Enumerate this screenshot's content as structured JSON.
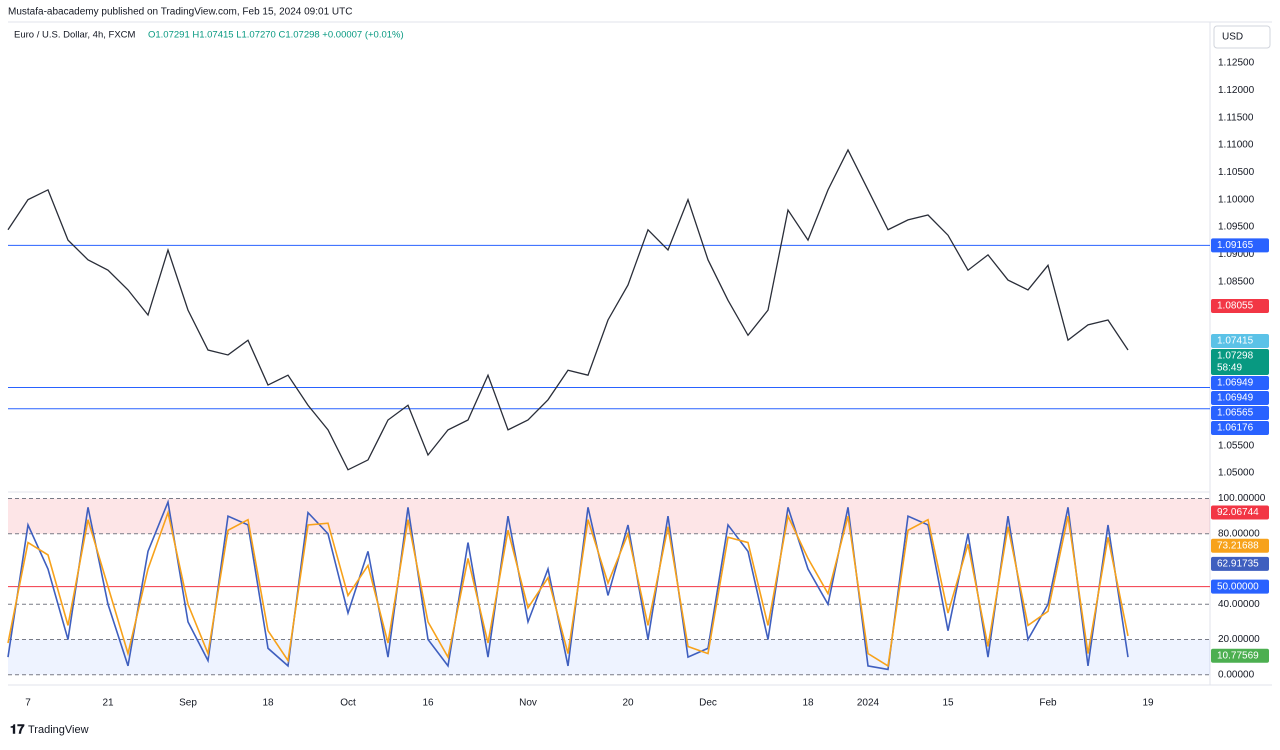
{
  "header": {
    "published": "Mustafa-abacademy published on TradingView.com, Feb 15, 2024 09:01 UTC",
    "symbol": "Euro / U.S. Dollar, 4h, FXCM",
    "ohlc": "O1.07291 H1.07415 L1.07270 C1.07298 +0.00007 (+0.01%)",
    "currency": "USD"
  },
  "footer": {
    "brand": "TradingView"
  },
  "chart_data": [
    {
      "type": "line",
      "categories": [
        null,
        "7",
        null,
        null,
        null,
        "21",
        null,
        null,
        null,
        "Sep",
        null,
        null,
        null,
        "18",
        null,
        null,
        null,
        "Oct",
        null,
        null,
        null,
        "16",
        null,
        null,
        null,
        null,
        "Nov",
        null,
        null,
        null,
        null,
        "20",
        null,
        null,
        null,
        "Dec",
        null,
        null,
        null,
        null,
        "18",
        null,
        null,
        "2024",
        null,
        null,
        null,
        "15",
        null,
        null,
        null,
        null,
        "Feb",
        null,
        null,
        null,
        null,
        "19"
      ],
      "series": [
        {
          "name": "EUR/USD",
          "color": "#2a2e39",
          "values": [
            1.0945,
            1.1,
            1.1018,
            1.0926,
            1.089,
            1.0871,
            1.0835,
            1.0789,
            1.0908,
            1.0798,
            1.0725,
            1.0716,
            1.0743,
            1.0661,
            1.0679,
            1.0624,
            1.0579,
            1.0506,
            1.0524,
            1.0597,
            1.0624,
            1.0533,
            1.0579,
            1.0597,
            1.0679,
            1.0579,
            1.0597,
            1.0634,
            1.0688,
            1.0679,
            1.078,
            1.0844,
            1.0945,
            1.0908,
            1.1,
            1.089,
            1.0816,
            1.0752,
            1.0798,
            1.0981,
            1.0926,
            1.1018,
            1.1091,
            1.1018,
            1.0945,
            1.0963,
            1.0972,
            1.0935,
            1.0871,
            1.0899,
            1.0853,
            1.0835,
            1.088,
            1.0743,
            1.0771,
            1.078,
            1.0725,
            null
          ]
        }
      ],
      "ylim": [
        1.0469,
        1.1325
      ],
      "yticks": [
        {
          "value": 1.125,
          "label": "1.12500"
        },
        {
          "value": 1.12,
          "label": "1.12000"
        },
        {
          "value": 1.115,
          "label": "1.11500"
        },
        {
          "value": 1.11,
          "label": "1.11000"
        },
        {
          "value": 1.105,
          "label": "1.10500"
        },
        {
          "value": 1.1,
          "label": "1.10000"
        },
        {
          "value": 1.095,
          "label": "1.09500"
        },
        {
          "value": 1.09,
          "label": "1.09000"
        },
        {
          "value": 1.085,
          "label": "1.08500"
        },
        {
          "value": 1.055,
          "label": "1.05500"
        },
        {
          "value": 1.05,
          "label": "1.05000"
        }
      ],
      "hlines": [
        {
          "value": 1.09165,
          "color": "#2962ff"
        },
        {
          "value": 1.06565,
          "color": "#2962ff"
        },
        {
          "value": 1.06176,
          "color": "#2962ff"
        }
      ],
      "price_labels": [
        {
          "value": 1.09165,
          "label": "1.09165",
          "color": "#2962ff"
        },
        {
          "value": 1.08055,
          "label": "1.08055",
          "color": "#f23645"
        },
        {
          "value": 1.07415,
          "label": "1.07415",
          "color": "#5bc2e7"
        },
        {
          "value": 1.07298,
          "label": "1.07298",
          "color": "#089981",
          "countdown": "58:49"
        },
        {
          "value": 1.06949,
          "label": "1.06949",
          "color": "#2962ff"
        },
        {
          "value": 1.06949,
          "label": "1.06949",
          "color": "#2962ff"
        },
        {
          "value": 1.06565,
          "label": "1.06565",
          "color": "#2962ff"
        },
        {
          "value": 1.06176,
          "label": "1.06176",
          "color": "#2962ff"
        }
      ]
    },
    {
      "type": "line",
      "series": [
        {
          "name": "K",
          "color": "#3f5fbf",
          "values": [
            10,
            85,
            60,
            20,
            95,
            40,
            5,
            70,
            98,
            30,
            8,
            90,
            85,
            15,
            5,
            92,
            80,
            35,
            70,
            10,
            95,
            20,
            5,
            75,
            10,
            90,
            30,
            60,
            5,
            95,
            45,
            85,
            20,
            90,
            10,
            15,
            85,
            70,
            20,
            95,
            60,
            40,
            95,
            5,
            3,
            90,
            85,
            25,
            80,
            10,
            90,
            20,
            40,
            95,
            5,
            85,
            10,
            null
          ]
        },
        {
          "name": "D",
          "color": "#f7a21b",
          "values": [
            18,
            75,
            68,
            28,
            88,
            50,
            12,
            60,
            92,
            40,
            12,
            82,
            88,
            25,
            8,
            85,
            86,
            45,
            62,
            18,
            88,
            30,
            10,
            66,
            18,
            82,
            38,
            55,
            12,
            88,
            52,
            80,
            28,
            84,
            16,
            12,
            78,
            75,
            28,
            90,
            66,
            46,
            90,
            12,
            5,
            82,
            88,
            35,
            74,
            16,
            84,
            28,
            36,
            90,
            12,
            78,
            22,
            null
          ]
        }
      ],
      "ylim": [
        -3,
        102
      ],
      "yticks": [
        {
          "value": 100,
          "label": "100.00000"
        },
        {
          "value": 80,
          "label": "80.00000"
        },
        {
          "value": 40,
          "label": "40.00000"
        },
        {
          "value": 20,
          "label": "20.00000"
        },
        {
          "value": 0,
          "label": "0.00000"
        }
      ],
      "hlines": [
        {
          "value": 50,
          "color": "#f23645"
        }
      ],
      "price_labels": [
        {
          "value": 92.06744,
          "label": "92.06744",
          "color": "#f23645"
        },
        {
          "value": 73.21688,
          "label": "73.21688",
          "color": "#f7a21b"
        },
        {
          "value": 62.91735,
          "label": "62.91735",
          "color": "#3f5fbf"
        },
        {
          "value": 50,
          "label": "50.00000",
          "color": "#2962ff"
        },
        {
          "value": 10.77569,
          "label": "10.77569",
          "color": "#4caf50"
        }
      ]
    }
  ]
}
